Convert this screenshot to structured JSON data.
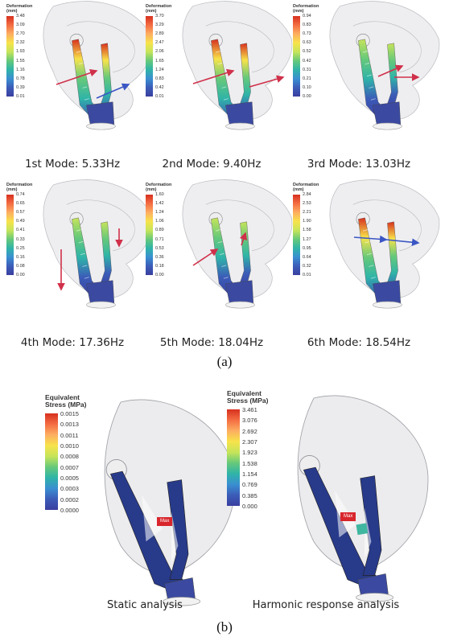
{
  "part_a": {
    "label": "(a)",
    "modes": [
      {
        "caption": "1st Mode: 5.33Hz",
        "legend_title": "Deformation\n(mm)",
        "ticks": [
          "3.48",
          "3.09",
          "2.70",
          "2.32",
          "1.93",
          "1.55",
          "1.16",
          "0.78",
          "0.39",
          "0.01"
        ]
      },
      {
        "caption": "2nd Mode: 9.40Hz",
        "legend_title": "Deformation\n(mm)",
        "ticks": [
          "3.70",
          "3.29",
          "2.89",
          "2.47",
          "2.06",
          "1.65",
          "1.24",
          "0.83",
          "0.42",
          "0.01"
        ]
      },
      {
        "caption": "3rd Mode: 13.03Hz",
        "legend_title": "Deformation\n(mm)",
        "ticks": [
          "0.94",
          "0.83",
          "0.73",
          "0.63",
          "0.52",
          "0.42",
          "0.31",
          "0.21",
          "0.10",
          "0.00"
        ]
      },
      {
        "caption": "4th Mode: 17.36Hz",
        "legend_title": "Deformation\n(mm)",
        "ticks": [
          "0.74",
          "0.65",
          "0.57",
          "0.49",
          "0.41",
          "0.33",
          "0.25",
          "0.16",
          "0.08",
          "0.00"
        ]
      },
      {
        "caption": "5th Mode: 18.04Hz",
        "legend_title": "Deformation\n(mm)",
        "ticks": [
          "1.60",
          "1.42",
          "1.24",
          "1.06",
          "0.89",
          "0.71",
          "0.53",
          "0.36",
          "0.18",
          "0.00"
        ]
      },
      {
        "caption": "6th Mode: 18.54Hz",
        "legend_title": "Deformation\n(mm)",
        "ticks": [
          "2.84",
          "2.53",
          "2.21",
          "1.90",
          "1.58",
          "1.27",
          "0.95",
          "0.64",
          "0.32",
          "0.01"
        ]
      }
    ]
  },
  "part_b": {
    "label": "(b)",
    "static": {
      "caption": "Static analysis",
      "legend_title": "Equivalent\nStress (MPa)",
      "ticks": [
        "0.0015",
        "0.0013",
        "0.0011",
        "0.0010",
        "0.0008",
        "0.0007",
        "0.0005",
        "0.0003",
        "0.0002",
        "0.0000"
      ],
      "max_tag": "Max"
    },
    "harmonic": {
      "caption": "Harmonic response analysis",
      "legend_title": "Equivalent\nStress (MPa)",
      "ticks": [
        "3.461",
        "3.076",
        "2.692",
        "2.307",
        "1.923",
        "1.538",
        "1.154",
        "0.769",
        "0.385",
        "0.000"
      ],
      "max_tag": "Max"
    }
  },
  "colors": {
    "scale": [
      "#d7301f",
      "#f46d43",
      "#fdae61",
      "#f7e34a",
      "#c6e45a",
      "#66c97a",
      "#2fb4a8",
      "#3a8fd1",
      "#3b5cb8",
      "#3a3f9f"
    ],
    "arrow_red": "#d0304a",
    "arrow_blue": "#3a55c4",
    "shell": "#d9dadd",
    "bracket_dark": "#283a8a"
  }
}
